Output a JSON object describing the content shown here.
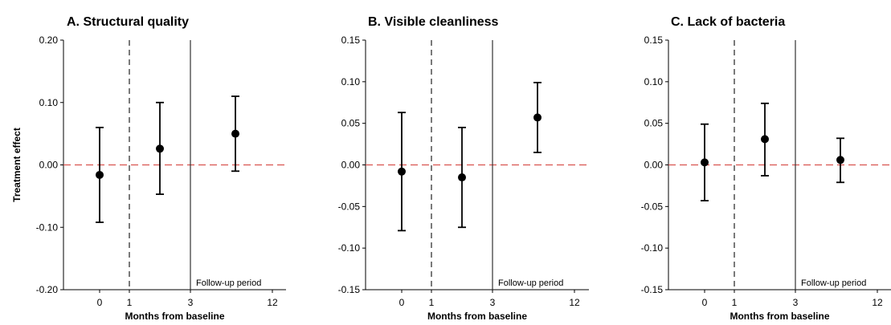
{
  "chart_data": [
    {
      "type": "scatter",
      "title": "A. Structural quality",
      "xlabel": "Months from baseline",
      "ylabel": "Treatment effect",
      "ylim": [
        -0.2,
        0.2
      ],
      "yticks": [
        "0.20",
        "0.10",
        "0.00",
        "-0.10",
        "-0.20"
      ],
      "xticks": [
        "0",
        "1",
        "3",
        "12"
      ],
      "annotation": "Follow-up period",
      "reference_line": 0,
      "points": [
        {
          "x": "0",
          "y": -0.016,
          "ci_low": -0.092,
          "ci_high": 0.06
        },
        {
          "x": "1-3",
          "y": 0.026,
          "ci_low": -0.047,
          "ci_high": 0.1
        },
        {
          "x": "3-12",
          "y": 0.05,
          "ci_low": -0.01,
          "ci_high": 0.11
        }
      ]
    },
    {
      "type": "scatter",
      "title": "B. Visible cleanliness",
      "xlabel": "Months from baseline",
      "ylabel": "",
      "ylim": [
        -0.15,
        0.15
      ],
      "yticks": [
        "0.15",
        "0.10",
        "0.05",
        "0.00",
        "-0.05",
        "-0.10",
        "-0.15"
      ],
      "xticks": [
        "0",
        "1",
        "3",
        "12"
      ],
      "annotation": "Follow-up period",
      "reference_line": 0,
      "points": [
        {
          "x": "0",
          "y": -0.008,
          "ci_low": -0.079,
          "ci_high": 0.063
        },
        {
          "x": "1-3",
          "y": -0.015,
          "ci_low": -0.075,
          "ci_high": 0.045
        },
        {
          "x": "3-12",
          "y": 0.057,
          "ci_low": 0.015,
          "ci_high": 0.099
        }
      ]
    },
    {
      "type": "scatter",
      "title": "C. Lack of bacteria",
      "xlabel": "Months from baseline",
      "ylabel": "",
      "ylim": [
        -0.15,
        0.15
      ],
      "yticks": [
        "0.15",
        "0.10",
        "0.05",
        "0.00",
        "-0.05",
        "-0.10",
        "-0.15"
      ],
      "xticks": [
        "0",
        "1",
        "3",
        "12"
      ],
      "annotation": "Follow-up period",
      "reference_line": 0,
      "points": [
        {
          "x": "0",
          "y": 0.003,
          "ci_low": -0.043,
          "ci_high": 0.049
        },
        {
          "x": "1-3",
          "y": 0.031,
          "ci_low": -0.013,
          "ci_high": 0.074
        },
        {
          "x": "3-12",
          "y": 0.006,
          "ci_low": -0.021,
          "ci_high": 0.032
        }
      ]
    }
  ],
  "colors": {
    "points": "#000000",
    "reference_line": "#d9534f",
    "axes": "#000000"
  }
}
